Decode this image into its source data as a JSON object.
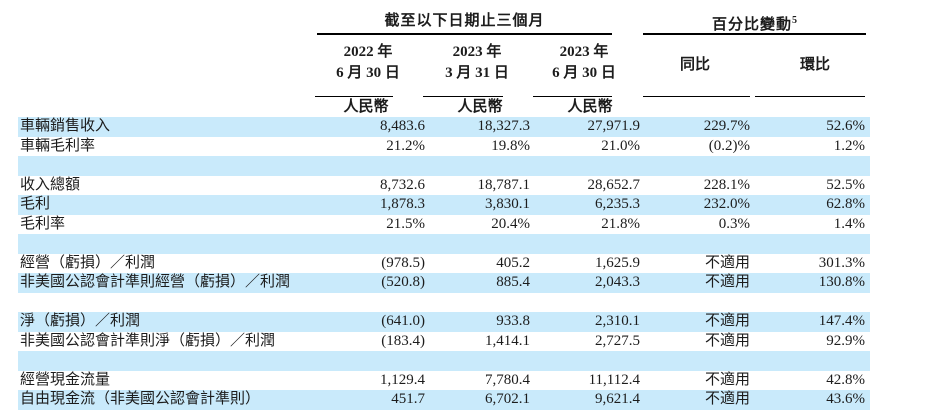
{
  "table": {
    "group_headers": {
      "period": "截至以下日期止三個月",
      "change": "百分比變動",
      "change_footnote": "5"
    },
    "columns": {
      "col_2022_q2": {
        "line1": "2022 年",
        "line2": "6 月 30 日",
        "currency": "人民幣"
      },
      "col_2023_q1": {
        "line1": "2023 年",
        "line2": "3 月 31 日",
        "currency": "人民幣"
      },
      "col_2023_q2": {
        "line1": "2023 年",
        "line2": "6 月 30 日",
        "currency": "人民幣"
      },
      "yoy": "同比",
      "qoq": "環比"
    },
    "rows": [
      {
        "label": "車輛銷售收入",
        "v2022q2": "8,483.6",
        "v2023q1": "18,327.3",
        "v2023q2": "27,971.9",
        "yoy": "229.7%",
        "qoq": "52.6%"
      },
      {
        "label": "車輛毛利率",
        "v2022q2": "21.2%",
        "v2023q1": "19.8%",
        "v2023q2": "21.0%",
        "yoy": "(0.2)%",
        "qoq": "1.2%"
      },
      {
        "label": "",
        "v2022q2": "",
        "v2023q1": "",
        "v2023q2": "",
        "yoy": "",
        "qoq": ""
      },
      {
        "label": "收入總額",
        "v2022q2": "8,732.6",
        "v2023q1": "18,787.1",
        "v2023q2": "28,652.7",
        "yoy": "228.1%",
        "qoq": "52.5%"
      },
      {
        "label": "毛利",
        "v2022q2": "1,878.3",
        "v2023q1": "3,830.1",
        "v2023q2": "6,235.3",
        "yoy": "232.0%",
        "qoq": "62.8%"
      },
      {
        "label": "毛利率",
        "v2022q2": "21.5%",
        "v2023q1": "20.4%",
        "v2023q2": "21.8%",
        "yoy": "0.3%",
        "qoq": "1.4%"
      },
      {
        "label": "",
        "v2022q2": "",
        "v2023q1": "",
        "v2023q2": "",
        "yoy": "",
        "qoq": ""
      },
      {
        "label": "經營（虧損）／利潤",
        "v2022q2": "(978.5)",
        "v2023q1": "405.2",
        "v2023q2": "1,625.9",
        "yoy": "不適用",
        "qoq": "301.3%"
      },
      {
        "label": "非美國公認會計準則經營（虧損）／利潤",
        "v2022q2": "(520.8)",
        "v2023q1": "885.4",
        "v2023q2": "2,043.3",
        "yoy": "不適用",
        "qoq": "130.8%"
      },
      {
        "label": "",
        "v2022q2": "",
        "v2023q1": "",
        "v2023q2": "",
        "yoy": "",
        "qoq": ""
      },
      {
        "label": "淨（虧損）／利潤",
        "v2022q2": "(641.0)",
        "v2023q1": "933.8",
        "v2023q2": "2,310.1",
        "yoy": "不適用",
        "qoq": "147.4%"
      },
      {
        "label": "非美國公認會計準則淨（虧損）／利潤",
        "v2022q2": "(183.4)",
        "v2023q1": "1,414.1",
        "v2023q2": "2,727.5",
        "yoy": "不適用",
        "qoq": "92.9%"
      },
      {
        "label": "",
        "v2022q2": "",
        "v2023q1": "",
        "v2023q2": "",
        "yoy": "",
        "qoq": ""
      },
      {
        "label": "經營現金流量",
        "v2022q2": "1,129.4",
        "v2023q1": "7,780.4",
        "v2023q2": "11,112.4",
        "yoy": "不適用",
        "qoq": "42.8%"
      },
      {
        "label": "自由現金流（非美國公認會計準則）",
        "v2022q2": "451.7",
        "v2023q1": "6,702.1",
        "v2023q2": "9,621.4",
        "yoy": "不適用",
        "qoq": "43.6%"
      }
    ]
  },
  "colors": {
    "row_highlight": "#c9eafb",
    "rule_line": "#000000",
    "text": "#1c1c1c"
  }
}
